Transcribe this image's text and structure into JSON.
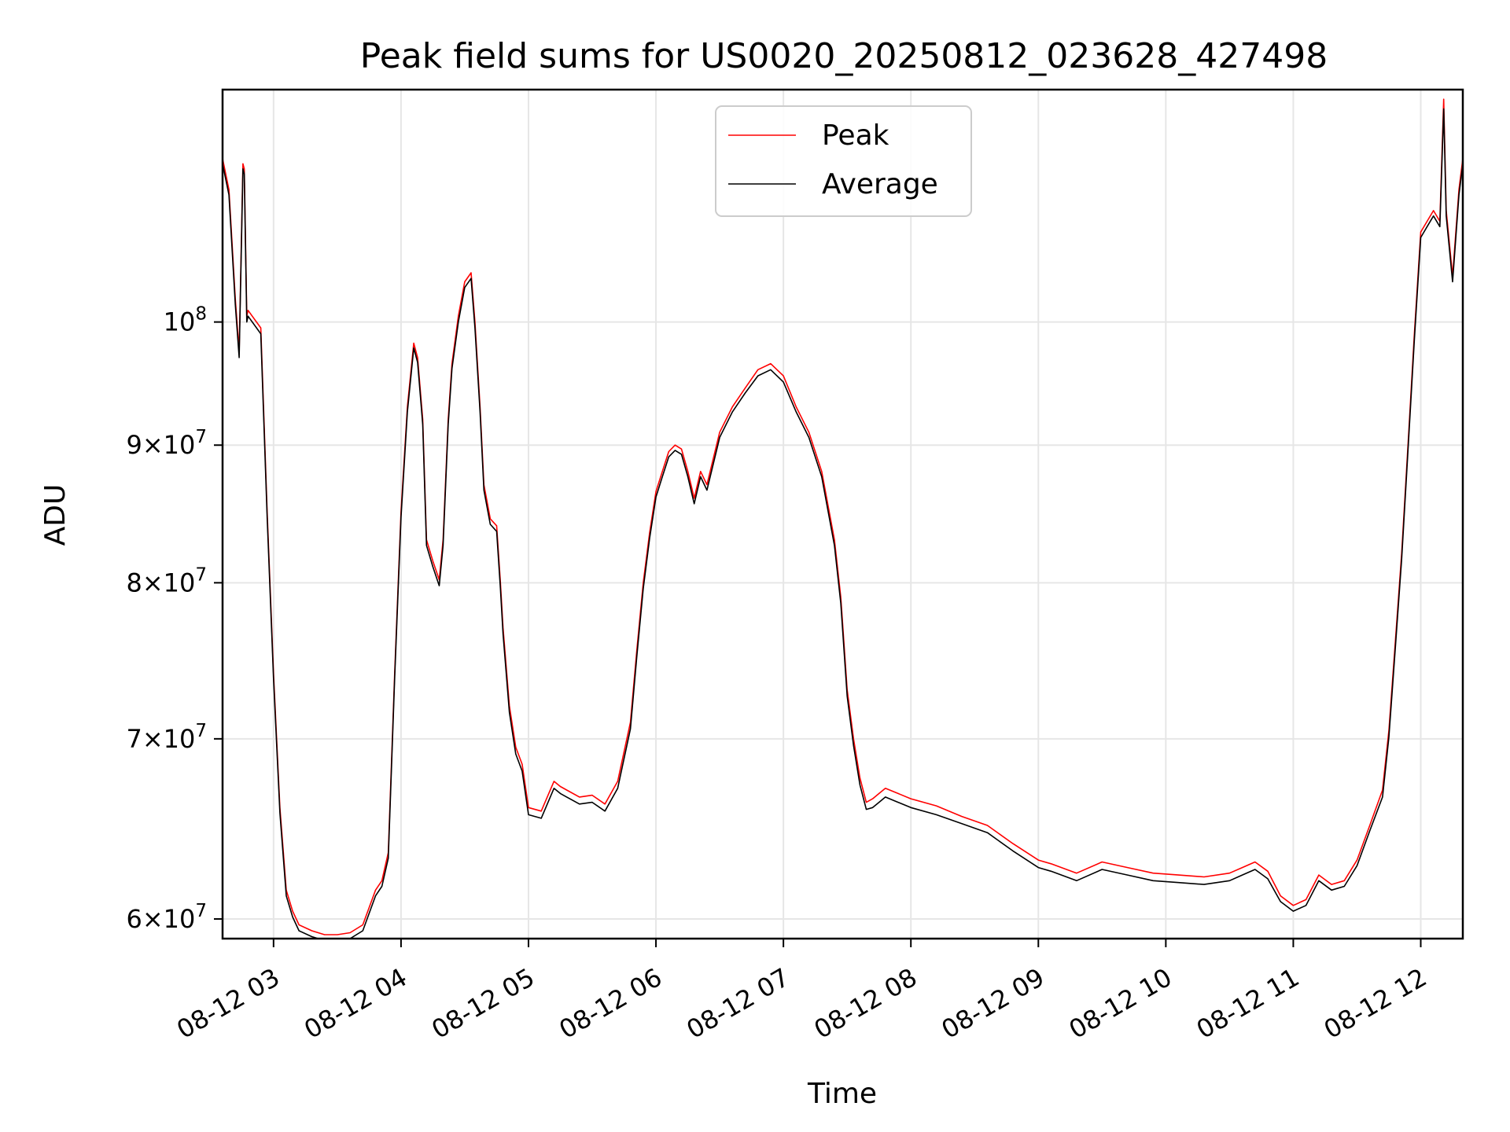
{
  "chart_data": {
    "type": "line",
    "title": "Peak field sums for US0020_20250812_023628_427498",
    "xlabel": "Time",
    "ylabel": "ADU",
    "yscale": "log",
    "ylim": [
      59000000,
      122000000
    ],
    "xlim_hours": [
      2.6,
      12.33
    ],
    "grid": true,
    "legend_position": "upper-center",
    "x_ticks": [
      {
        "hour": 3,
        "label": "08-12 03"
      },
      {
        "hour": 4,
        "label": "08-12 04"
      },
      {
        "hour": 5,
        "label": "08-12 05"
      },
      {
        "hour": 6,
        "label": "08-12 06"
      },
      {
        "hour": 7,
        "label": "08-12 07"
      },
      {
        "hour": 8,
        "label": "08-12 08"
      },
      {
        "hour": 9,
        "label": "08-12 09"
      },
      {
        "hour": 10,
        "label": "08-12 10"
      },
      {
        "hour": 11,
        "label": "08-12 11"
      },
      {
        "hour": 12,
        "label": "08-12 12"
      }
    ],
    "y_ticks": [
      {
        "value": 60000000,
        "base": "6×10",
        "exp": "7"
      },
      {
        "value": 70000000,
        "base": "7×10",
        "exp": "7"
      },
      {
        "value": 80000000,
        "base": "8×10",
        "exp": "7"
      },
      {
        "value": 90000000,
        "base": "9×10",
        "exp": "7"
      },
      {
        "value": 100000000,
        "base": "10",
        "exp": "8"
      }
    ],
    "series": [
      {
        "name": "Peak",
        "color": "#ff0000",
        "x": [
          2.6,
          2.65,
          2.7,
          2.73,
          2.76,
          2.77,
          2.79,
          2.8,
          2.9,
          2.95,
          3.0,
          3.05,
          3.1,
          3.15,
          3.2,
          3.3,
          3.4,
          3.5,
          3.6,
          3.7,
          3.8,
          3.85,
          3.9,
          3.95,
          4.0,
          4.05,
          4.1,
          4.13,
          4.17,
          4.2,
          4.25,
          4.3,
          4.33,
          4.37,
          4.4,
          4.45,
          4.5,
          4.55,
          4.58,
          4.62,
          4.65,
          4.7,
          4.75,
          4.78,
          4.8,
          4.85,
          4.9,
          4.95,
          5.0,
          5.1,
          5.2,
          5.25,
          5.3,
          5.4,
          5.5,
          5.6,
          5.7,
          5.8,
          5.85,
          5.9,
          5.95,
          6.0,
          6.05,
          6.1,
          6.15,
          6.2,
          6.25,
          6.3,
          6.35,
          6.4,
          6.5,
          6.6,
          6.7,
          6.8,
          6.9,
          7.0,
          7.1,
          7.2,
          7.3,
          7.4,
          7.45,
          7.5,
          7.55,
          7.6,
          7.65,
          7.7,
          7.75,
          7.8,
          7.9,
          8.0,
          8.2,
          8.4,
          8.6,
          8.8,
          9.0,
          9.1,
          9.3,
          9.5,
          9.7,
          9.9,
          10.1,
          10.3,
          10.5,
          10.6,
          10.7,
          10.8,
          10.9,
          11.0,
          11.1,
          11.2,
          11.3,
          11.4,
          11.5,
          11.6,
          11.7,
          11.75,
          11.8,
          11.85,
          11.9,
          11.95,
          12.0,
          12.05,
          12.1,
          12.15,
          12.18,
          12.2,
          12.25,
          12.3,
          12.33
        ],
        "y": [
          115000000,
          112000000,
          102000000,
          97500000,
          114500000,
          114000000,
          100500000,
          101000000,
          99500000,
          85000000,
          74000000,
          66000000,
          61500000,
          60400000,
          59700000,
          59400000,
          59200000,
          59200000,
          59300000,
          59700000,
          61500000,
          62000000,
          63500000,
          74000000,
          85000000,
          93000000,
          98200000,
          97000000,
          92000000,
          83000000,
          81500000,
          80200000,
          83000000,
          92000000,
          96500000,
          100500000,
          103500000,
          104300000,
          100000000,
          93000000,
          87000000,
          84500000,
          84000000,
          80000000,
          77000000,
          72000000,
          69500000,
          68500000,
          66000000,
          65800000,
          67500000,
          67200000,
          67000000,
          66600000,
          66700000,
          66200000,
          67500000,
          71000000,
          75500000,
          80000000,
          83500000,
          86500000,
          88000000,
          89500000,
          90000000,
          89700000,
          88000000,
          86000000,
          88000000,
          87000000,
          91000000,
          93000000,
          94500000,
          96000000,
          96500000,
          95500000,
          93000000,
          91000000,
          88000000,
          83000000,
          79000000,
          73000000,
          70000000,
          67700000,
          66300000,
          66500000,
          66800000,
          67100000,
          66800000,
          66500000,
          66100000,
          65500000,
          65000000,
          64000000,
          63100000,
          62900000,
          62400000,
          63000000,
          62700000,
          62400000,
          62300000,
          62200000,
          62400000,
          62700000,
          63000000,
          62500000,
          61200000,
          60700000,
          61000000,
          62300000,
          61800000,
          62000000,
          63100000,
          65000000,
          67000000,
          70500000,
          76000000,
          82000000,
          90000000,
          99000000,
          108000000,
          109000000,
          110000000,
          109000000,
          121000000,
          110000000,
          104000000,
          112000000,
          115000000
        ]
      },
      {
        "name": "Average",
        "color": "#000000",
        "x": [
          2.6,
          2.65,
          2.7,
          2.73,
          2.76,
          2.77,
          2.79,
          2.8,
          2.9,
          2.95,
          3.0,
          3.05,
          3.1,
          3.15,
          3.2,
          3.3,
          3.4,
          3.5,
          3.6,
          3.7,
          3.8,
          3.85,
          3.9,
          3.95,
          4.0,
          4.05,
          4.1,
          4.13,
          4.17,
          4.2,
          4.25,
          4.3,
          4.33,
          4.37,
          4.4,
          4.45,
          4.5,
          4.55,
          4.58,
          4.62,
          4.65,
          4.7,
          4.75,
          4.78,
          4.8,
          4.85,
          4.9,
          4.95,
          5.0,
          5.1,
          5.2,
          5.25,
          5.3,
          5.4,
          5.5,
          5.6,
          5.7,
          5.8,
          5.85,
          5.9,
          5.95,
          6.0,
          6.05,
          6.1,
          6.15,
          6.2,
          6.25,
          6.3,
          6.35,
          6.4,
          6.5,
          6.6,
          6.7,
          6.8,
          6.9,
          7.0,
          7.1,
          7.2,
          7.3,
          7.4,
          7.45,
          7.5,
          7.55,
          7.6,
          7.65,
          7.7,
          7.75,
          7.8,
          7.9,
          8.0,
          8.2,
          8.4,
          8.6,
          8.8,
          9.0,
          9.1,
          9.3,
          9.5,
          9.7,
          9.9,
          10.1,
          10.3,
          10.5,
          10.6,
          10.7,
          10.8,
          10.9,
          11.0,
          11.1,
          11.2,
          11.3,
          11.4,
          11.5,
          11.6,
          11.7,
          11.75,
          11.8,
          11.85,
          11.9,
          11.95,
          12.0,
          12.05,
          12.1,
          12.15,
          12.18,
          12.2,
          12.25,
          12.3,
          12.33
        ],
        "y": [
          114500000,
          111500000,
          101500000,
          97000000,
          114000000,
          113500000,
          100000000,
          100500000,
          99000000,
          84600000,
          73700000,
          65700000,
          61200000,
          60100000,
          59400000,
          59100000,
          58900000,
          58900000,
          59000000,
          59400000,
          61200000,
          61700000,
          63200000,
          73700000,
          84600000,
          92600000,
          97800000,
          96600000,
          91600000,
          82600000,
          81100000,
          79800000,
          82600000,
          91600000,
          96100000,
          100000000,
          103000000,
          103800000,
          99500000,
          92600000,
          86600000,
          84100000,
          83600000,
          79600000,
          76600000,
          71600000,
          69100000,
          68100000,
          65600000,
          65400000,
          67100000,
          66800000,
          66600000,
          66200000,
          66300000,
          65800000,
          67100000,
          70600000,
          75100000,
          79600000,
          83100000,
          86100000,
          87600000,
          89100000,
          89600000,
          89300000,
          87600000,
          85600000,
          87600000,
          86600000,
          90600000,
          92600000,
          94100000,
          95500000,
          96000000,
          95000000,
          92600000,
          90600000,
          87600000,
          82600000,
          78600000,
          72600000,
          69600000,
          67300000,
          65900000,
          66000000,
          66300000,
          66600000,
          66300000,
          66000000,
          65600000,
          65100000,
          64600000,
          63600000,
          62700000,
          62500000,
          62000000,
          62600000,
          62300000,
          62000000,
          61900000,
          61800000,
          62000000,
          62300000,
          62600000,
          62100000,
          60900000,
          60400000,
          60700000,
          62000000,
          61500000,
          61700000,
          62800000,
          64700000,
          66600000,
          70100000,
          75600000,
          81600000,
          89600000,
          98500000,
          107500000,
          108500000,
          109500000,
          108500000,
          120000000,
          109500000,
          103500000,
          111500000,
          114500000
        ]
      }
    ]
  }
}
